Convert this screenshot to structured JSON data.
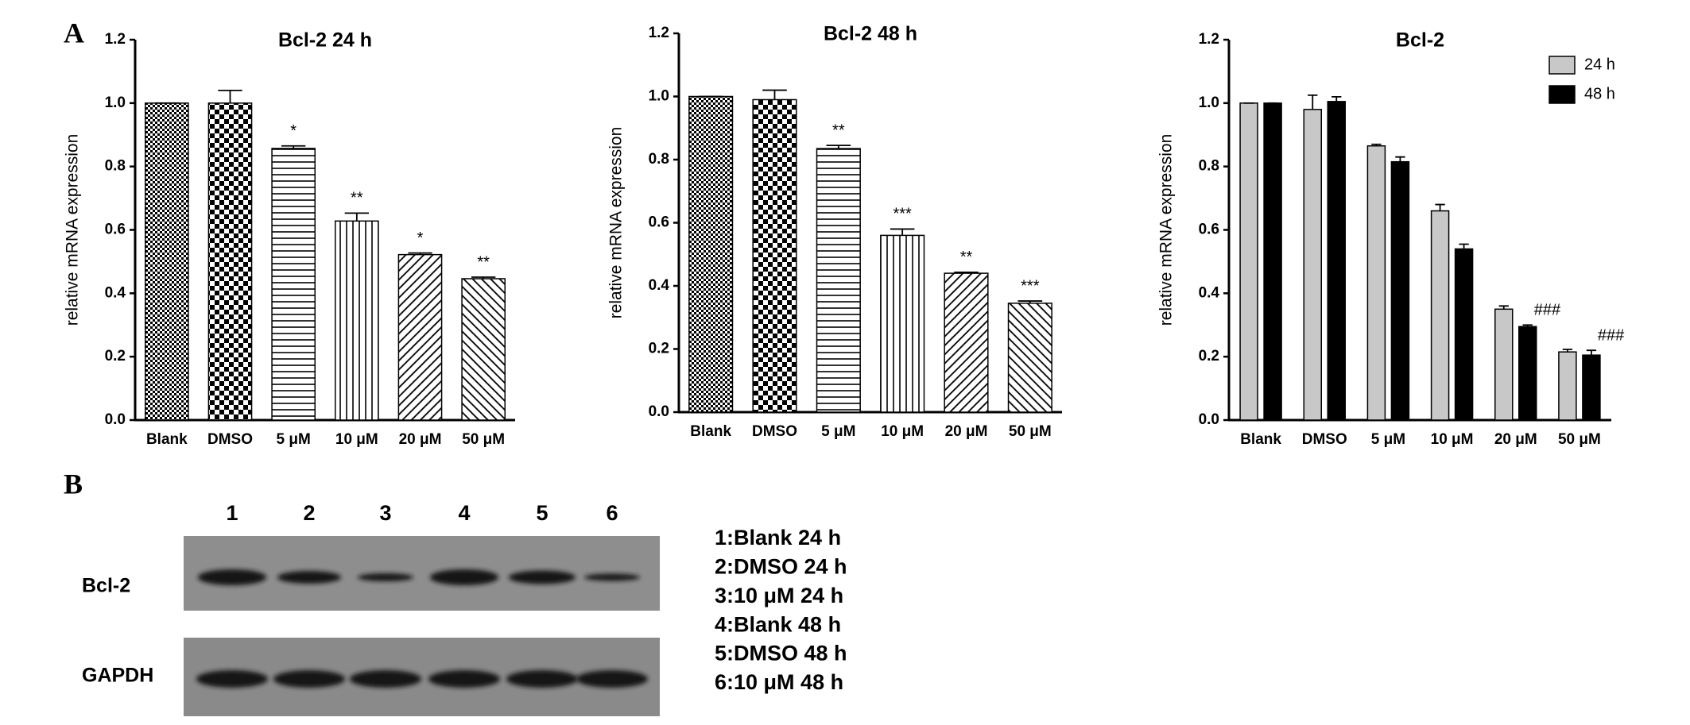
{
  "panel_labels": [
    "A",
    "B"
  ],
  "chart_data": [
    {
      "type": "bar",
      "title": "Bcl-2 24 h",
      "y_label": "relative mRNA expression",
      "categories": [
        "Blank",
        "DMSO",
        "5 μM",
        "10 μM",
        "20 μM",
        "50 μM"
      ],
      "values": [
        1.0,
        1.0,
        0.857,
        0.628,
        0.522,
        0.446
      ],
      "errors": [
        0,
        0.04,
        0.008,
        0.025,
        0.005,
        0.005
      ],
      "annotations": [
        null,
        null,
        "*",
        "**",
        "*",
        "**"
      ],
      "ylim": [
        0,
        1.2
      ],
      "yticks": [
        {
          "value": 0,
          "label": "0.0"
        },
        0.2,
        0.4,
        0.6,
        0.8,
        {
          "value": 1,
          "label": "1.0"
        },
        1.2
      ]
    },
    {
      "type": "bar",
      "title": "Bcl-2 48 h",
      "y_label": "relative mRNA expression",
      "categories": [
        "Blank",
        "DMSO",
        "5 μM",
        "10 μM",
        "20 μM",
        "50 μM"
      ],
      "values": [
        1.0,
        0.99,
        0.835,
        0.56,
        0.44,
        0.345
      ],
      "errors": [
        0,
        0.03,
        0.01,
        0.02,
        0.003,
        0.007
      ],
      "annotations": [
        null,
        null,
        "**",
        "***",
        "**",
        "***"
      ],
      "ylim": [
        0,
        1.2
      ],
      "yticks": [
        {
          "value": 0,
          "label": "0.0"
        },
        0.2,
        0.4,
        0.6,
        0.8,
        {
          "value": 1,
          "label": "1.0"
        },
        1.2
      ]
    },
    {
      "type": "bar",
      "title": "Bcl-2",
      "y_label": "relative mRNA expression",
      "categories": [
        "Blank",
        "DMSO",
        "5 μM",
        "10 μM",
        "20 μM",
        "50 μM"
      ],
      "series": [
        {
          "name": "24 h",
          "color": "#c8c8c8",
          "values": [
            1.0,
            0.98,
            0.865,
            0.66,
            0.35,
            0.215
          ],
          "errors": [
            0,
            0.045,
            0.005,
            0.02,
            0.01,
            0.008
          ],
          "annotations": [
            null,
            null,
            null,
            null,
            null,
            null
          ]
        },
        {
          "name": "48 h",
          "color": "#000000",
          "values": [
            1.0,
            1.005,
            0.815,
            0.54,
            0.295,
            0.205
          ],
          "errors": [
            0,
            0.015,
            0.015,
            0.015,
            0.005,
            0.015
          ],
          "annotations": [
            null,
            null,
            null,
            null,
            "###",
            "###"
          ]
        }
      ],
      "legend": "upper right",
      "ylim": [
        0,
        1.2
      ],
      "yticks": [
        {
          "value": 0,
          "label": "0.0"
        },
        0.2,
        0.4,
        0.6,
        0.8,
        {
          "value": 1,
          "label": "1.0"
        },
        1.2
      ]
    }
  ],
  "blot": {
    "lanes": [
      "1",
      "2",
      "3",
      "4",
      "5",
      "6"
    ],
    "rows": [
      "Bcl-2",
      "GAPDH"
    ],
    "key": [
      "1:Blank 24 h",
      "2:DMSO 24 h",
      "3:10 μM 24 h",
      "4:Blank 48 h",
      "5:DMSO 48 h",
      "6:10 μM 48 h"
    ]
  }
}
